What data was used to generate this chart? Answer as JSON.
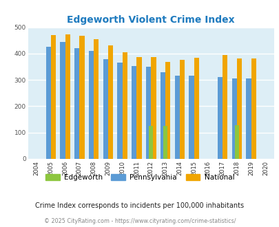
{
  "title": "Edgeworth Violent Crime Index",
  "years": [
    2004,
    2005,
    2006,
    2007,
    2008,
    2009,
    2010,
    2011,
    2012,
    2013,
    2014,
    2015,
    2016,
    2017,
    2018,
    2019,
    2020
  ],
  "edgeworth": [
    0,
    0,
    0,
    0,
    0,
    0,
    0,
    0,
    125,
    125,
    0,
    0,
    0,
    0,
    128,
    0,
    0
  ],
  "pennsylvania": [
    0,
    425,
    443,
    420,
    410,
    378,
    365,
    353,
    349,
    328,
    315,
    315,
    0,
    312,
    305,
    305,
    0
  ],
  "national": [
    0,
    469,
    474,
    467,
    455,
    432,
    405,
    387,
    387,
    368,
    376,
    384,
    0,
    394,
    381,
    381,
    0
  ],
  "edgeworth_color": "#8dc63f",
  "pennsylvania_color": "#5b9bd5",
  "national_color": "#f0a500",
  "bg_color": "#ddeef6",
  "title_color": "#1f7bbf",
  "ylim": [
    0,
    500
  ],
  "yticks": [
    0,
    100,
    200,
    300,
    400,
    500
  ],
  "subtitle": "Crime Index corresponds to incidents per 100,000 inhabitants",
  "footer": "© 2025 CityRating.com - https://www.cityrating.com/crime-statistics/",
  "legend_labels": [
    "Edgeworth",
    "Pennsylvania",
    "National"
  ],
  "bar_width": 0.35,
  "figwidth": 4.06,
  "figheight": 3.3,
  "dpi": 100
}
